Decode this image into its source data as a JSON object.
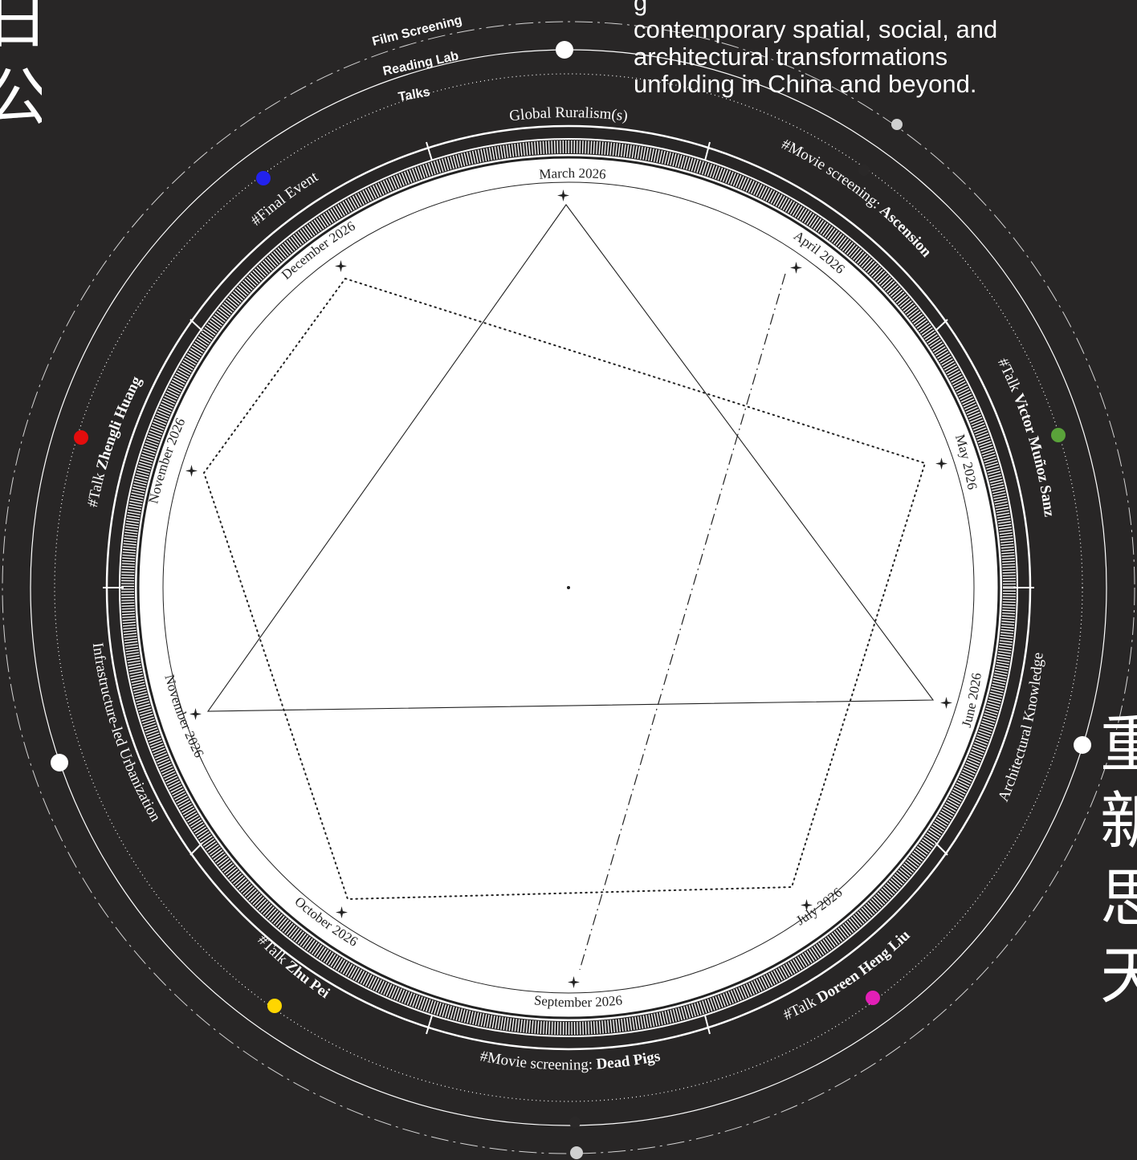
{
  "intro_text": {
    "lines": [
      "g",
      "contemporary spatial, social, and",
      "architectural transformations",
      "unfolding in China and beyond."
    ]
  },
  "categories": [
    "Film Screening",
    "Reading Lab",
    "Talks"
  ],
  "themes": {
    "top": "Global Ruralism(s)",
    "right": "Architectural Knowledge",
    "left": "Infrastructure-led Urbanization"
  },
  "events": [
    {
      "prefix": "#Movie screening: ",
      "name": "Ascension",
      "dot_color": "#2a2828"
    },
    {
      "prefix": "#Talk  ",
      "name": "Victor Muñoz Sanz",
      "dot_color": "#5aa33a"
    },
    {
      "prefix": "#Talk ",
      "name": "Doreen Heng Liu",
      "dot_color": "#e21fb6"
    },
    {
      "prefix": "#Movie screening: ",
      "name": "Dead Pigs",
      "dot_color": "#2a2828"
    },
    {
      "prefix": "#Talk ",
      "name": "Zhu Pei",
      "dot_color": "#ffd600"
    },
    {
      "prefix": "#Talk ",
      "name": "Zhengli Huang",
      "dot_color": "#e30d0d"
    },
    {
      "prefix": "#Final Event",
      "name": "",
      "dot_color": "#2222ee"
    }
  ],
  "months": [
    "March 2026",
    "April 2026",
    "May 2026",
    "June 2026",
    "July 2026",
    "September 2026",
    "October 2026",
    "November 2026",
    "November 2026",
    "December 2026"
  ],
  "cjk_left": [
    "日",
    "公"
  ],
  "cjk_right": [
    "重",
    "新",
    "思",
    "天"
  ],
  "colors": {
    "background": "#282626",
    "disc": "#ffffff",
    "line": "#ffffff",
    "ink": "#222222"
  }
}
